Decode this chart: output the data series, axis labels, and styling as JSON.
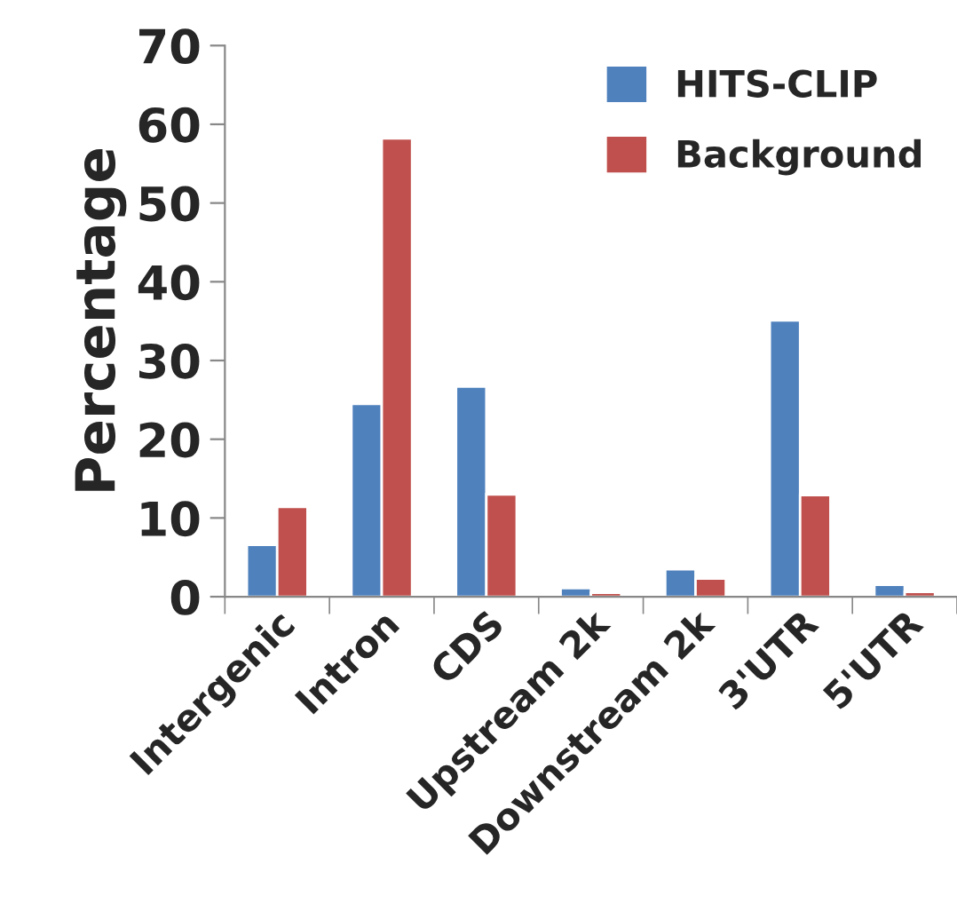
{
  "chart_data": {
    "type": "bar",
    "ylabel": "Percentage",
    "categories": [
      "Intergenic",
      "Intron",
      "CDS",
      "Upstream 2k",
      "Downstream 2k",
      "3'UTR",
      "5'UTR"
    ],
    "series": [
      {
        "name": "HITS-CLIP",
        "color": "#4f81bd",
        "values": [
          6.6,
          24.5,
          26.7,
          1.1,
          3.5,
          35.1,
          1.5
        ]
      },
      {
        "name": "Background",
        "color": "#c0504d",
        "values": [
          11.4,
          58.2,
          13.0,
          0.5,
          2.3,
          12.9,
          0.6
        ]
      }
    ],
    "ylim": [
      0,
      70
    ],
    "yticks": [
      0,
      10,
      20,
      30,
      40,
      50,
      60,
      70
    ],
    "grid": false,
    "legend": "top right"
  }
}
